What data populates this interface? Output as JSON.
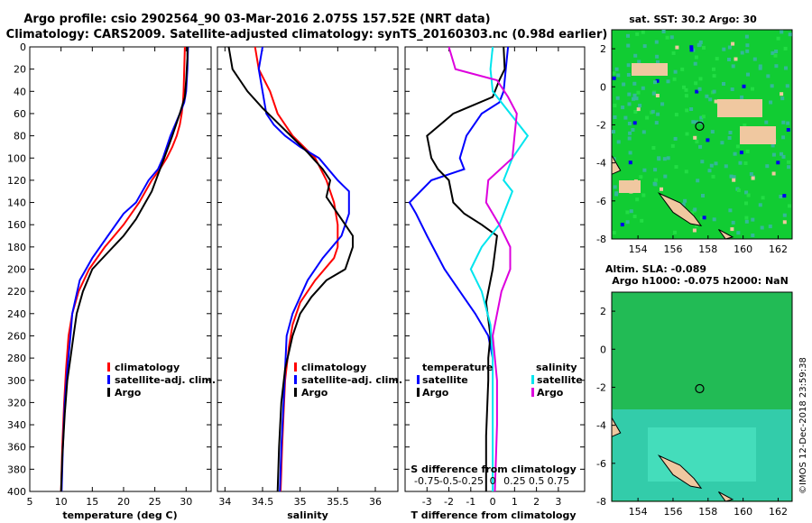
{
  "header": {
    "title_line1": "Argo profile: csio 2902564_90 03-Mar-2016 2.075S 157.52E (NRT data)",
    "title_line2": "Climatology: CARS2009. Satellite-adjusted climatology: synTS_20160303.nc (0.98d earlier)"
  },
  "credit": "©IMOS 12-Dec-2018 23:59:38",
  "colors": {
    "climatology": "#ff0000",
    "satellite": "#0000ff",
    "argo": "#000000",
    "sal_satellite": "#00e5ee",
    "sal_argo": "#dd00dd"
  },
  "chart_data": [
    {
      "type": "line",
      "name": "temperature",
      "xlabel": "temperature (deg C)",
      "ylabel": "",
      "xlim": [
        5,
        34
      ],
      "ylim": [
        0,
        400
      ],
      "xticks": [
        5,
        10,
        15,
        20,
        25,
        30
      ],
      "yticks": [
        0,
        20,
        40,
        60,
        80,
        100,
        120,
        140,
        160,
        180,
        200,
        220,
        240,
        260,
        280,
        300,
        320,
        340,
        360,
        380,
        400
      ],
      "legend": [
        "climatology",
        "satellite-adj. clim.",
        "Argo"
      ],
      "legend_position": "bottom-right",
      "series": [
        {
          "name": "climatology",
          "color": "#ff0000",
          "x": [
            29.8,
            29.7,
            29.6,
            29.5,
            29.3,
            29.0,
            28.5,
            27.8,
            26.9,
            25.8,
            24.5,
            22.5,
            20.0,
            17.0,
            14.5,
            12.8,
            11.8,
            11.2,
            10.8,
            10.5,
            10.2,
            10.0
          ],
          "y": [
            0,
            20,
            40,
            50,
            60,
            70,
            80,
            90,
            100,
            110,
            120,
            140,
            160,
            180,
            200,
            220,
            240,
            260,
            290,
            320,
            360,
            400
          ]
        },
        {
          "name": "satellite-adj. clim.",
          "color": "#0000ff",
          "x": [
            30.3,
            30.2,
            30.0,
            29.7,
            29.0,
            27.5,
            26.3,
            25.5,
            24.0,
            22.0,
            20.0,
            17.5,
            15.0,
            13.0,
            11.8,
            11.5,
            11.0,
            10.6,
            10.3,
            10.1
          ],
          "y": [
            0,
            20,
            40,
            50,
            60,
            80,
            100,
            110,
            120,
            140,
            150,
            170,
            190,
            210,
            240,
            260,
            290,
            320,
            360,
            400
          ]
        },
        {
          "name": "Argo",
          "color": "#000000",
          "x": [
            30.2,
            30.2,
            30.1,
            30.0,
            29.8,
            29.0,
            27.8,
            26.5,
            25.5,
            24.5,
            23.5,
            22.0,
            20.0,
            17.5,
            15.0,
            13.5,
            12.5,
            12.0,
            11.5,
            11.0,
            10.6,
            10.2,
            10.0
          ],
          "y": [
            0,
            10,
            20,
            30,
            45,
            60,
            80,
            100,
            115,
            130,
            140,
            155,
            170,
            185,
            200,
            220,
            240,
            260,
            280,
            300,
            330,
            370,
            400
          ]
        }
      ]
    },
    {
      "type": "line",
      "name": "salinity",
      "xlabel": "salinity",
      "ylabel": "",
      "xlim": [
        33.9,
        36.3
      ],
      "ylim": [
        0,
        400
      ],
      "xticks": [
        34,
        34.5,
        35,
        35.5,
        36
      ],
      "legend": [
        "climatology",
        "satellite-adj. clim.",
        "Argo"
      ],
      "legend_position": "bottom-right",
      "series": [
        {
          "name": "climatology",
          "color": "#ff0000",
          "x": [
            34.4,
            34.45,
            34.6,
            34.7,
            34.9,
            35.2,
            35.35,
            35.45,
            35.5,
            35.5,
            35.45,
            35.2,
            35.0,
            34.9,
            34.85,
            34.8,
            34.78,
            34.76,
            34.74
          ],
          "y": [
            0,
            20,
            40,
            60,
            80,
            100,
            120,
            140,
            160,
            180,
            190,
            210,
            230,
            250,
            270,
            300,
            330,
            360,
            400
          ]
        },
        {
          "name": "satellite-adj. clim.",
          "color": "#0000ff",
          "x": [
            34.5,
            34.45,
            34.5,
            34.55,
            34.65,
            34.8,
            35.0,
            35.25,
            35.5,
            35.65,
            35.65,
            35.55,
            35.3,
            35.1,
            34.9,
            34.82,
            34.8,
            34.78,
            34.75,
            34.73
          ],
          "y": [
            0,
            20,
            40,
            60,
            70,
            80,
            90,
            100,
            120,
            130,
            150,
            170,
            190,
            210,
            240,
            260,
            290,
            320,
            360,
            400
          ]
        },
        {
          "name": "Argo",
          "color": "#000000",
          "x": [
            34.05,
            34.1,
            34.2,
            34.3,
            34.5,
            34.8,
            35.1,
            35.3,
            35.4,
            35.35,
            35.5,
            35.6,
            35.7,
            35.7,
            35.6,
            35.35,
            35.15,
            35.0,
            34.9,
            34.8,
            34.75,
            34.72,
            34.7
          ],
          "y": [
            0,
            20,
            30,
            40,
            55,
            75,
            95,
            110,
            120,
            135,
            150,
            160,
            170,
            180,
            200,
            210,
            225,
            240,
            260,
            290,
            320,
            360,
            400
          ]
        }
      ]
    },
    {
      "type": "line",
      "name": "difference",
      "xlabel": "T difference from climatology",
      "top_axis_label": "S difference from climatology",
      "xlim": [
        -4,
        4.2
      ],
      "ylim": [
        0,
        400
      ],
      "xticks": [
        -3,
        -2,
        -1,
        0,
        1,
        2,
        3
      ],
      "top_ticks": [
        "-0.75",
        "-0.5",
        "-0.25",
        "0",
        "0.25",
        "0.5",
        "0.75"
      ],
      "legend_left_title": "temperature",
      "legend_left": [
        "satellite",
        "Argo"
      ],
      "legend_right_title": "salinity",
      "legend_right": [
        "satellite",
        "Argo"
      ],
      "series": [
        {
          "name": "T satellite",
          "color": "#0000ff",
          "x": [
            0.7,
            0.6,
            0.5,
            0.3,
            -0.5,
            -1.2,
            -1.5,
            -1.3,
            -2.8,
            -3.8,
            -3.5,
            -3.0,
            -2.2,
            -1.5,
            -0.8,
            -0.2,
            0.0
          ],
          "y": [
            0,
            20,
            40,
            50,
            60,
            80,
            100,
            110,
            120,
            140,
            150,
            170,
            200,
            220,
            240,
            260,
            280
          ]
        },
        {
          "name": "T Argo",
          "color": "#000000",
          "x": [
            0.5,
            0.55,
            0.3,
            0.0,
            -1.8,
            -3.0,
            -2.8,
            -2.5,
            -2.0,
            -1.8,
            -1.3,
            -0.5,
            0.2,
            0.0,
            -0.3,
            -0.1,
            -0.2,
            -0.2,
            -0.3,
            -0.3
          ],
          "y": [
            0,
            20,
            30,
            45,
            60,
            80,
            100,
            110,
            120,
            140,
            150,
            160,
            170,
            200,
            230,
            260,
            280,
            300,
            350,
            400
          ]
        },
        {
          "name": "S satellite",
          "color": "#00e5ee",
          "x": [
            0.0,
            -0.1,
            0.0,
            0.8,
            1.6,
            0.9,
            0.5,
            0.9,
            0.7,
            0.3,
            -0.5,
            -1.0,
            -0.5,
            -0.1,
            0.0,
            0.0,
            0.0,
            0.0
          ],
          "y": [
            0,
            20,
            40,
            60,
            80,
            100,
            120,
            130,
            140,
            160,
            180,
            200,
            220,
            250,
            280,
            320,
            360,
            400
          ]
        },
        {
          "name": "S Argo",
          "color": "#dd00dd",
          "x": [
            -2.0,
            -1.7,
            0.2,
            0.7,
            1.1,
            1.0,
            0.9,
            -0.2,
            -0.3,
            0.3,
            0.8,
            0.8,
            0.4,
            0.0,
            0.2,
            0.2,
            0.15,
            0.1
          ],
          "y": [
            0,
            20,
            30,
            45,
            60,
            80,
            100,
            120,
            140,
            160,
            180,
            200,
            220,
            260,
            300,
            340,
            370,
            400
          ]
        }
      ]
    },
    {
      "type": "heatmap",
      "name": "SST map",
      "title": "sat. SST: 30.2 Argo: 30",
      "xlim": [
        152.5,
        162.8
      ],
      "ylim": [
        -8,
        3
      ],
      "xticks": [
        154,
        156,
        158,
        160,
        162
      ],
      "yticks": [
        2,
        0,
        -2,
        -4,
        -6,
        -8
      ],
      "marker": {
        "lon": 157.52,
        "lat": -2.075
      }
    },
    {
      "type": "heatmap",
      "name": "SLA map",
      "title_line1": "Altim. SLA: -0.089",
      "title_line2": "Argo h1000: -0.075 h2000: NaN",
      "xlim": [
        152.5,
        162.8
      ],
      "ylim": [
        -8,
        3
      ],
      "xticks": [
        154,
        156,
        158,
        160,
        162
      ],
      "yticks": [
        2,
        0,
        -2,
        -4,
        -6,
        -8
      ],
      "marker": {
        "lon": 157.52,
        "lat": -2.075
      }
    }
  ]
}
